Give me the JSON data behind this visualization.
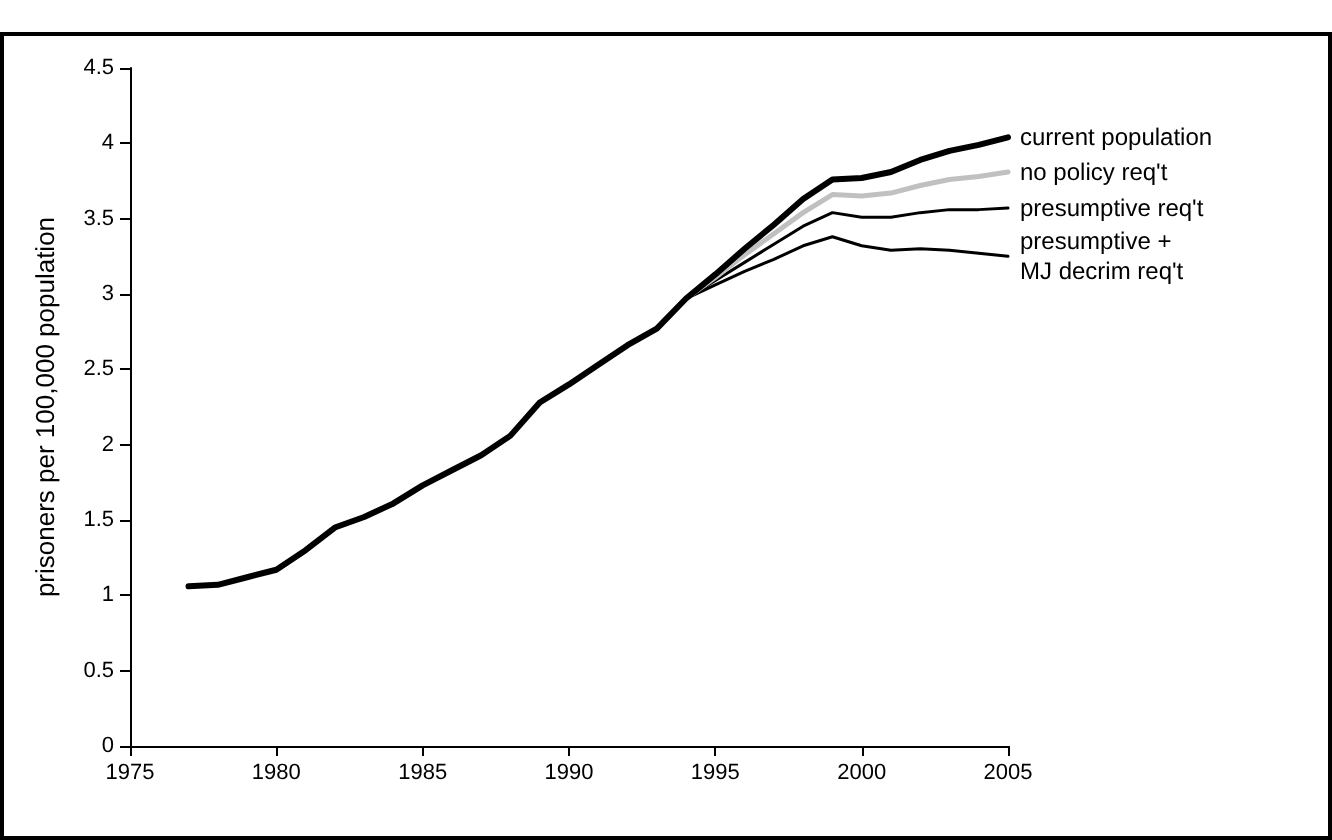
{
  "chart_data": {
    "type": "line",
    "ylabel": "prisoners per 100,000 population",
    "xlim": [
      1975,
      2005
    ],
    "xticks": [
      1975,
      1980,
      1985,
      1990,
      1995,
      2000,
      2005
    ],
    "ylim": [
      0,
      4.5
    ],
    "yticks": [
      0,
      0.5,
      1,
      1.5,
      2,
      2.5,
      3,
      3.5,
      4,
      4.5
    ],
    "grid": false,
    "legend": false,
    "marker": "none",
    "line_style": "solid",
    "series": [
      {
        "name": "current population",
        "color": "#000000",
        "x": [
          1977,
          1978,
          1979,
          1980,
          1981,
          1982,
          1983,
          1984,
          1985,
          1986,
          1987,
          1988,
          1989,
          1990,
          1991,
          1992,
          1993,
          1994,
          1995,
          1996,
          1997,
          1998,
          1999,
          2000,
          2001,
          2002,
          2003,
          2004,
          2005
        ],
        "values": [
          1.06,
          1.07,
          1.12,
          1.17,
          1.3,
          1.45,
          1.52,
          1.61,
          1.73,
          1.83,
          1.93,
          2.06,
          2.28,
          2.4,
          2.53,
          2.66,
          2.77,
          2.97,
          3.13,
          3.3,
          3.46,
          3.63,
          3.76,
          3.77,
          3.81,
          3.89,
          3.95,
          3.99,
          4.04
        ]
      },
      {
        "name": "no policy req't",
        "color": "#c0c0c0",
        "x": [
          1994,
          1995,
          1996,
          1997,
          1998,
          1999,
          2000,
          2001,
          2002,
          2003,
          2004,
          2005
        ],
        "values": [
          2.97,
          3.11,
          3.26,
          3.4,
          3.54,
          3.66,
          3.65,
          3.67,
          3.72,
          3.76,
          3.78,
          3.81
        ]
      },
      {
        "name": "presumptive req't",
        "color": "#000000",
        "x": [
          1994,
          1995,
          1996,
          1997,
          1998,
          1999,
          2000,
          2001,
          2002,
          2003,
          2004,
          2005
        ],
        "values": [
          2.97,
          3.09,
          3.21,
          3.33,
          3.45,
          3.54,
          3.51,
          3.51,
          3.54,
          3.56,
          3.56,
          3.57
        ]
      },
      {
        "name": "presumptive +\nMJ decrim req't",
        "color": "#000000",
        "x": [
          1994,
          1995,
          1996,
          1997,
          1998,
          1999,
          2000,
          2001,
          2002,
          2003,
          2004,
          2005
        ],
        "values": [
          2.97,
          3.06,
          3.15,
          3.23,
          3.32,
          3.38,
          3.32,
          3.29,
          3.3,
          3.29,
          3.27,
          3.25
        ]
      }
    ]
  }
}
